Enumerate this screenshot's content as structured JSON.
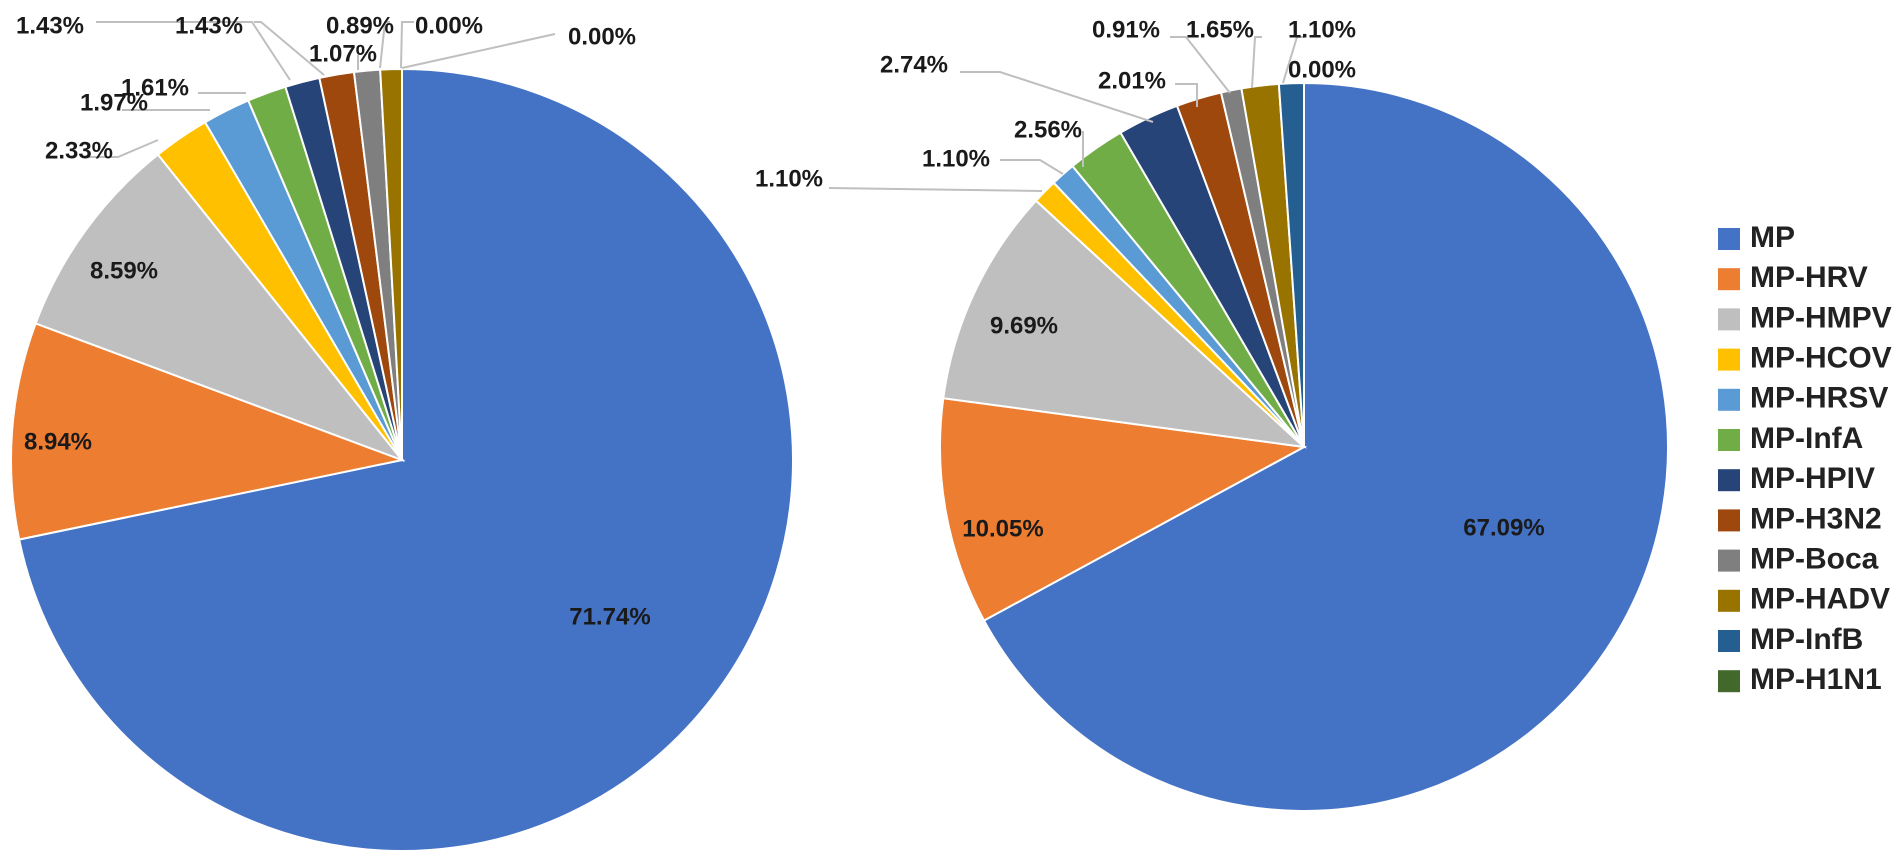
{
  "series_names": [
    "MP",
    "MP-HRV",
    "MP-HMPV",
    "MP-HCOV",
    "MP-HRSV",
    "MP-InfA",
    "MP-HPIV",
    "MP-H3N2",
    "MP-Boca",
    "MP-HADV",
    "MP-InfB",
    "MP-H1N1"
  ],
  "colors": [
    "#4472C4",
    "#ED7D31",
    "#BFBFBF",
    "#FFC000",
    "#5B9BD5",
    "#70AD47",
    "#264478",
    "#9E480E",
    "#7F7F7F",
    "#997300",
    "#255E91",
    "#43682B"
  ],
  "chart_data": [
    {
      "type": "pie",
      "categories": [
        "MP",
        "MP-HRV",
        "MP-HMPV",
        "MP-HCOV",
        "MP-HRSV",
        "MP-InfA",
        "MP-HPIV",
        "MP-H3N2",
        "MP-Boca",
        "MP-HADV",
        "MP-InfB",
        "MP-H1N1"
      ],
      "values": [
        71.74,
        8.94,
        8.59,
        2.33,
        1.97,
        1.61,
        1.43,
        1.43,
        1.07,
        0.89,
        0.0,
        0.0
      ],
      "labels": [
        "71.74%",
        "8.94%",
        "8.59%",
        "2.33%",
        "1.97%",
        "1.61%",
        "1.43%",
        "1.43%",
        "1.07%",
        "0.89%",
        "0.00%",
        "0.00%"
      ]
    },
    {
      "type": "pie",
      "categories": [
        "MP",
        "MP-HRV",
        "MP-HMPV",
        "MP-HCOV",
        "MP-HRSV",
        "MP-InfA",
        "MP-HPIV",
        "MP-H3N2",
        "MP-Boca",
        "MP-HADV",
        "MP-InfB",
        "MP-H1N1"
      ],
      "values": [
        67.09,
        10.05,
        9.69,
        1.1,
        1.1,
        2.56,
        2.74,
        2.01,
        0.91,
        1.65,
        1.1,
        0.0
      ],
      "labels": [
        "67.09%",
        "10.05%",
        "9.69%",
        "1.10%",
        "1.10%",
        "2.56%",
        "2.74%",
        "2.01%",
        "0.91%",
        "1.65%",
        "1.10%",
        "0.00%"
      ]
    }
  ],
  "legend": {
    "placement": "right",
    "items": [
      "MP",
      "MP-HRV",
      "MP-HMPV",
      "MP-HCOV",
      "MP-HRSV",
      "MP-InfA",
      "MP-HPIV",
      "MP-H3N2",
      "MP-Boca",
      "MP-HADV",
      "MP-InfB",
      "MP-H1N1"
    ]
  }
}
